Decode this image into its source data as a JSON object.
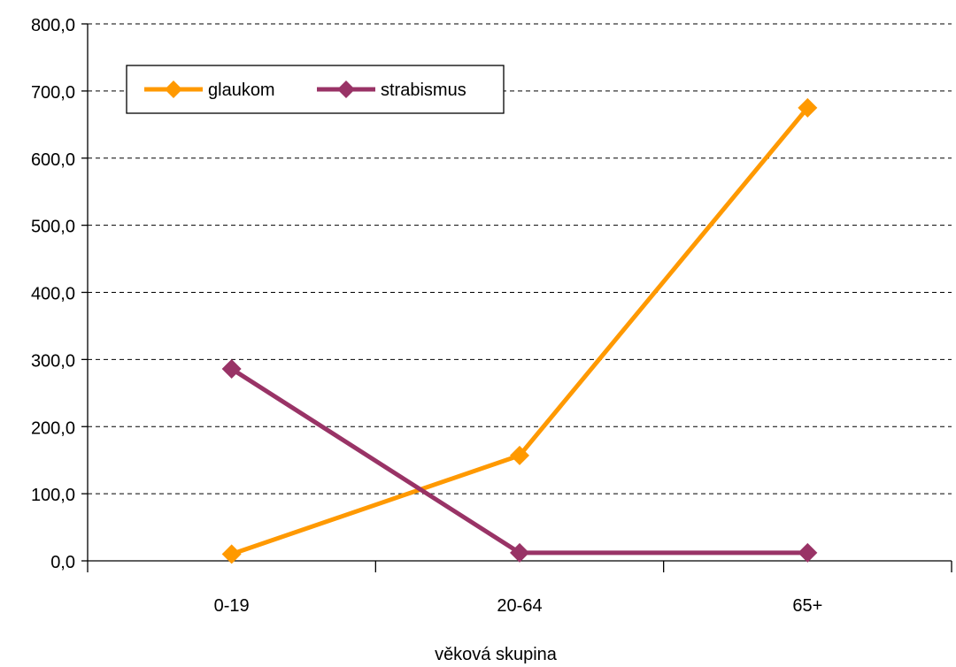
{
  "chart_data": {
    "type": "line",
    "title": "",
    "xlabel": "věková skupina",
    "ylabel": "",
    "categories": [
      "0-19",
      "20-64",
      "65+"
    ],
    "ylim": [
      0,
      800
    ],
    "yticks": [
      "0,0",
      "100,0",
      "200,0",
      "300,0",
      "400,0",
      "500,0",
      "600,0",
      "700,0",
      "800,0"
    ],
    "grid": "horizontal-dashed",
    "legend_position": "top-left",
    "series": [
      {
        "name": "glaukom",
        "color": "#FF9900",
        "values": [
          10,
          157,
          675
        ]
      },
      {
        "name": "strabismus",
        "color": "#993366",
        "values": [
          286,
          12,
          12
        ]
      }
    ]
  }
}
